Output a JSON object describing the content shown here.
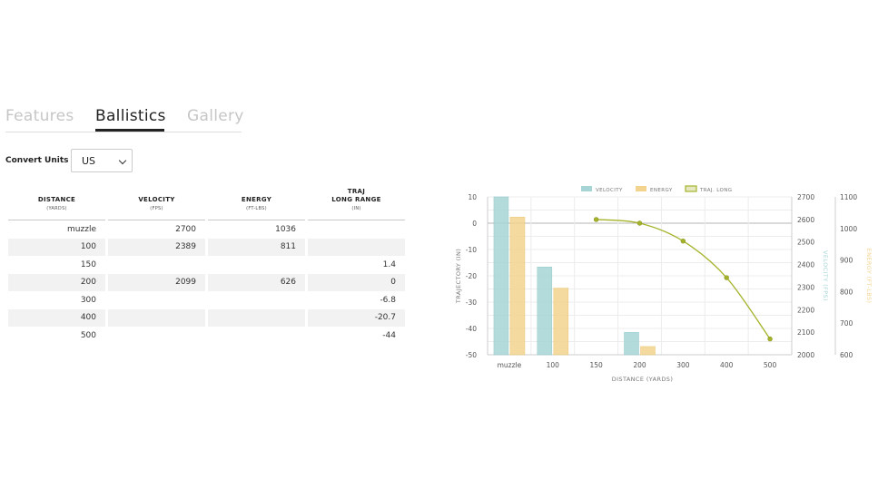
{
  "tabs": [
    {
      "label": "Features",
      "active": false
    },
    {
      "label": "Ballistics",
      "active": true
    },
    {
      "label": "Gallery",
      "active": false
    }
  ],
  "units": {
    "label": "Convert Units",
    "selected": "US"
  },
  "table": {
    "headers": [
      {
        "title": "DISTANCE",
        "title2": "",
        "sub": "(YARDS)"
      },
      {
        "title": "VELOCITY",
        "title2": "",
        "sub": "(FPS)"
      },
      {
        "title": "ENERGY",
        "title2": "",
        "sub": "(FT-LBS)"
      },
      {
        "title": "TRAJ",
        "title2": "LONG RANGE",
        "sub": "(IN)"
      }
    ],
    "rows": [
      [
        "muzzle",
        "2700",
        "1036",
        ""
      ],
      [
        "100",
        "2389",
        "811",
        ""
      ],
      [
        "150",
        "",
        "",
        "1.4"
      ],
      [
        "200",
        "2099",
        "626",
        "0"
      ],
      [
        "300",
        "",
        "",
        "-6.8"
      ],
      [
        "400",
        "",
        "",
        "-20.7"
      ],
      [
        "500",
        "",
        "",
        "-44"
      ]
    ]
  },
  "chart_data": {
    "type": "bar",
    "categories": [
      "muzzle",
      "100",
      "150",
      "200",
      "300",
      "400",
      "500"
    ],
    "xlabel": "DISTANCE (YARDS)",
    "legend_position": "top",
    "series": [
      {
        "name": "VELOCITY",
        "type": "bar",
        "axis": "velocity",
        "color": "#a7d5d6",
        "values": [
          2700,
          2389,
          null,
          2099,
          null,
          null,
          null
        ]
      },
      {
        "name": "ENERGY",
        "type": "bar",
        "axis": "energy",
        "color": "#f3d48e",
        "values": [
          1036,
          811,
          null,
          626,
          null,
          null,
          null
        ]
      },
      {
        "name": "TRAJ. LONG",
        "type": "line",
        "axis": "trajectory",
        "color": "#a5b32a",
        "values": [
          null,
          null,
          1.4,
          0,
          -6.8,
          -20.7,
          -44
        ]
      }
    ],
    "axes": {
      "trajectory": {
        "label": "TRAJECTORY (IN)",
        "side": "left",
        "min": -50,
        "max": 10,
        "ticks": [
          10,
          0,
          -10,
          -20,
          -30,
          -40,
          -50
        ]
      },
      "velocity": {
        "label": "VELOCITY (FPS)",
        "side": "right",
        "min": 2000,
        "max": 2700,
        "ticks": [
          2700,
          2600,
          2500,
          2400,
          2300,
          2200,
          2100,
          2000
        ],
        "color": "#a7d5d6"
      },
      "energy": {
        "label": "ENERGY (FT-LBS)",
        "side": "right",
        "min": 600,
        "max": 1100,
        "ticks": [
          1100,
          1000,
          900,
          800,
          700,
          600
        ],
        "color": "#f3d48e"
      }
    },
    "grid": true
  }
}
